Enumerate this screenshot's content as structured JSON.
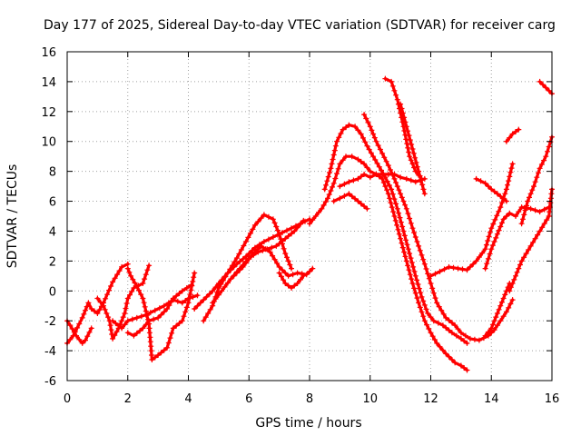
{
  "chart_data": {
    "type": "scatter",
    "title": "Day 177 of 2025, Sidereal Day-to-day VTEC variation (SDTVAR) for receiver carg",
    "xlabel": "GPS time / hours",
    "ylabel": "SDTVAR / TECUs",
    "xlim": [
      0,
      16
    ],
    "ylim": [
      -6,
      16
    ],
    "x_ticks": [
      "0",
      "2",
      "4",
      "6",
      "8",
      "10",
      "12",
      "14",
      "16"
    ],
    "y_ticks": [
      "-6",
      "-4",
      "-2",
      "0",
      "2",
      "4",
      "6",
      "8",
      "10",
      "12",
      "14",
      "16"
    ],
    "grid": true,
    "marker": "+",
    "color": "#ff0000",
    "series": [
      {
        "x": [
          0.0,
          0.2,
          0.4,
          0.5,
          0.7,
          0.8,
          1.0,
          1.2,
          1.5,
          1.8,
          2.0
        ],
        "y": [
          -3.5,
          -3.0,
          -2.2,
          -1.8,
          -0.8,
          -1.2,
          -1.5,
          -0.8,
          0.6,
          1.6,
          1.8
        ]
      },
      {
        "x": [
          2.0,
          2.1,
          2.3,
          2.5,
          2.7,
          2.8,
          3.0,
          3.3,
          3.5,
          3.8,
          4.0,
          4.2
        ],
        "y": [
          1.5,
          1.0,
          0.3,
          -0.5,
          -2.2,
          -4.6,
          -4.3,
          -3.8,
          -2.5,
          -2.0,
          -0.8,
          1.2
        ]
      },
      {
        "x": [
          0.0,
          0.1,
          0.3,
          0.5,
          0.6,
          0.8
        ],
        "y": [
          -2.0,
          -2.3,
          -3.0,
          -3.5,
          -3.3,
          -2.5
        ]
      },
      {
        "x": [
          1.0,
          1.2,
          1.4,
          1.5,
          1.7,
          1.9,
          2.0,
          2.2,
          2.5,
          2.7
        ],
        "y": [
          -0.5,
          -1.0,
          -2.0,
          -3.2,
          -2.5,
          -1.5,
          -0.5,
          0.2,
          0.5,
          1.7
        ]
      },
      {
        "x": [
          1.5,
          1.8,
          2.0,
          2.3,
          2.6,
          2.9,
          3.2,
          3.5,
          3.8,
          4.0,
          4.3
        ],
        "y": [
          -2.0,
          -2.5,
          -2.0,
          -1.8,
          -1.6,
          -1.3,
          -1.0,
          -0.6,
          -0.8,
          -0.5,
          -0.3
        ]
      },
      {
        "x": [
          2.0,
          2.2,
          2.5,
          2.7,
          3.0,
          3.3,
          3.5,
          3.8,
          4.1
        ],
        "y": [
          -2.8,
          -3.0,
          -2.5,
          -2.0,
          -1.8,
          -1.2,
          -0.5,
          0.0,
          0.4
        ]
      },
      {
        "x": [
          4.2,
          4.5,
          4.8,
          5.0,
          5.3,
          5.6,
          5.9,
          6.2,
          6.5,
          6.8,
          7.1,
          7.4,
          7.7,
          8.0
        ],
        "y": [
          -1.2,
          -0.6,
          0.0,
          0.5,
          1.2,
          1.8,
          2.3,
          2.9,
          3.3,
          3.6,
          3.9,
          4.2,
          4.5,
          4.8
        ]
      },
      {
        "x": [
          4.5,
          4.8,
          5.0,
          5.3,
          5.6,
          5.9,
          6.2,
          6.5,
          6.8,
          7.0,
          7.2,
          7.4
        ],
        "y": [
          -2.0,
          -1.0,
          0.2,
          1.2,
          2.2,
          3.3,
          4.4,
          5.1,
          4.8,
          3.8,
          2.5,
          1.5
        ]
      },
      {
        "x": [
          4.8,
          5.1,
          5.4,
          5.7,
          6.0,
          6.3,
          6.6,
          6.9,
          7.2,
          7.5,
          7.8
        ],
        "y": [
          -0.8,
          0.0,
          0.8,
          1.5,
          2.2,
          2.6,
          2.8,
          3.0,
          3.5,
          4.0,
          4.7
        ]
      },
      {
        "x": [
          5.5,
          5.8,
          6.1,
          6.4,
          6.7,
          7.0,
          7.3,
          7.6,
          7.9,
          8.1
        ],
        "y": [
          1.0,
          1.6,
          2.4,
          3.0,
          2.6,
          1.6,
          1.0,
          1.2,
          1.1,
          1.5
        ]
      },
      {
        "x": [
          7.0,
          7.2,
          7.4,
          7.6,
          7.8
        ],
        "y": [
          1.2,
          0.5,
          0.2,
          0.5,
          1.0
        ]
      },
      {
        "x": [
          8.0,
          8.2,
          8.4,
          8.6,
          8.8,
          9.0,
          9.2,
          9.4,
          9.6,
          9.8,
          10.0,
          10.2,
          10.4,
          10.6,
          10.8,
          11.0,
          11.2,
          11.4,
          11.6,
          11.8,
          12.0,
          12.2,
          12.5,
          12.8,
          13.0,
          13.2
        ],
        "y": [
          4.5,
          5.0,
          5.5,
          6.2,
          7.2,
          8.5,
          9.0,
          9.0,
          8.8,
          8.5,
          8.0,
          7.8,
          7.5,
          6.5,
          5.0,
          3.5,
          2.0,
          0.5,
          -0.8,
          -2.0,
          -2.8,
          -3.5,
          -4.2,
          -4.8,
          -5.0,
          -5.3
        ]
      },
      {
        "x": [
          8.5,
          8.7,
          8.9,
          9.1,
          9.3,
          9.5,
          9.7,
          9.9,
          10.1,
          10.3,
          10.5,
          10.7,
          10.9,
          11.1,
          11.3,
          11.5,
          11.7,
          11.9,
          12.1,
          12.4,
          12.7,
          13.0,
          13.2
        ],
        "y": [
          6.8,
          8.2,
          10.0,
          10.8,
          11.1,
          11.0,
          10.5,
          9.7,
          9.0,
          8.3,
          7.6,
          6.8,
          5.5,
          4.0,
          2.5,
          1.0,
          -0.4,
          -1.5,
          -2.0,
          -2.3,
          -2.8,
          -3.2,
          -3.5
        ]
      },
      {
        "x": [
          9.0,
          9.3,
          9.6,
          9.8,
          10.0,
          10.2,
          10.4,
          10.6,
          10.8,
          11.0,
          11.2,
          11.5,
          11.8
        ],
        "y": [
          7.0,
          7.3,
          7.5,
          7.8,
          7.6,
          7.8,
          7.8,
          7.8,
          7.8,
          7.6,
          7.5,
          7.3,
          7.5
        ]
      },
      {
        "x": [
          8.8,
          9.0,
          9.3,
          9.6,
          9.9
        ],
        "y": [
          6.0,
          6.2,
          6.5,
          6.0,
          5.5
        ]
      },
      {
        "x": [
          9.8,
          10.0,
          10.2,
          10.4,
          10.6,
          10.8,
          11.0,
          11.2,
          11.4,
          11.6,
          11.8,
          12.0,
          12.2,
          12.5,
          12.8,
          13.0,
          13.3,
          13.6,
          13.9,
          14.1,
          14.3,
          14.5,
          14.7
        ],
        "y": [
          11.8,
          11.0,
          10.0,
          9.2,
          8.4,
          7.5,
          6.5,
          5.5,
          4.2,
          3.0,
          1.8,
          0.5,
          -0.8,
          -1.8,
          -2.3,
          -2.8,
          -3.2,
          -3.3,
          -3.0,
          -2.6,
          -2.0,
          -1.4,
          -0.6
        ]
      },
      {
        "x": [
          10.5,
          10.7,
          10.9,
          11.1,
          11.3,
          11.5,
          11.7
        ],
        "y": [
          14.2,
          14.0,
          12.8,
          11.0,
          9.0,
          8.0,
          7.5
        ]
      },
      {
        "x": [
          11.0,
          11.2,
          11.4,
          11.6,
          11.8
        ],
        "y": [
          12.5,
          11.0,
          9.5,
          8.0,
          6.5
        ]
      },
      {
        "x": [
          12.0,
          12.3,
          12.6,
          12.9,
          13.2,
          13.5,
          13.8,
          14.0,
          14.3,
          14.5,
          14.7
        ],
        "y": [
          1.0,
          1.3,
          1.6,
          1.5,
          1.4,
          2.0,
          2.8,
          4.2,
          5.6,
          6.8,
          8.5
        ]
      },
      {
        "x": [
          13.8,
          14.0,
          14.2,
          14.4,
          14.6
        ],
        "y": [
          -3.0,
          -2.5,
          -1.5,
          -0.5,
          0.5
        ]
      },
      {
        "x": [
          13.8,
          14.0,
          14.2,
          14.4,
          14.6,
          14.8,
          15.0,
          15.3,
          15.6,
          15.9
        ],
        "y": [
          1.5,
          2.8,
          3.8,
          4.8,
          5.2,
          5.0,
          5.6,
          5.5,
          5.3,
          5.6
        ]
      },
      {
        "x": [
          14.6,
          14.8,
          15.0,
          15.3,
          15.6,
          15.9,
          16.0
        ],
        "y": [
          0.0,
          1.0,
          2.0,
          3.0,
          4.0,
          5.0,
          6.8
        ]
      },
      {
        "x": [
          13.5,
          13.8,
          14.0,
          14.2,
          14.5
        ],
        "y": [
          7.5,
          7.2,
          6.8,
          6.5,
          6.0
        ]
      },
      {
        "x": [
          15.0,
          15.2,
          15.4,
          15.6,
          15.8,
          16.0
        ],
        "y": [
          4.5,
          6.0,
          7.0,
          8.2,
          9.0,
          10.3
        ]
      },
      {
        "x": [
          14.5,
          14.7,
          14.9
        ],
        "y": [
          10.0,
          10.5,
          10.8
        ]
      },
      {
        "x": [
          15.6,
          15.8,
          16.0
        ],
        "y": [
          14.0,
          13.6,
          13.2
        ]
      }
    ]
  }
}
